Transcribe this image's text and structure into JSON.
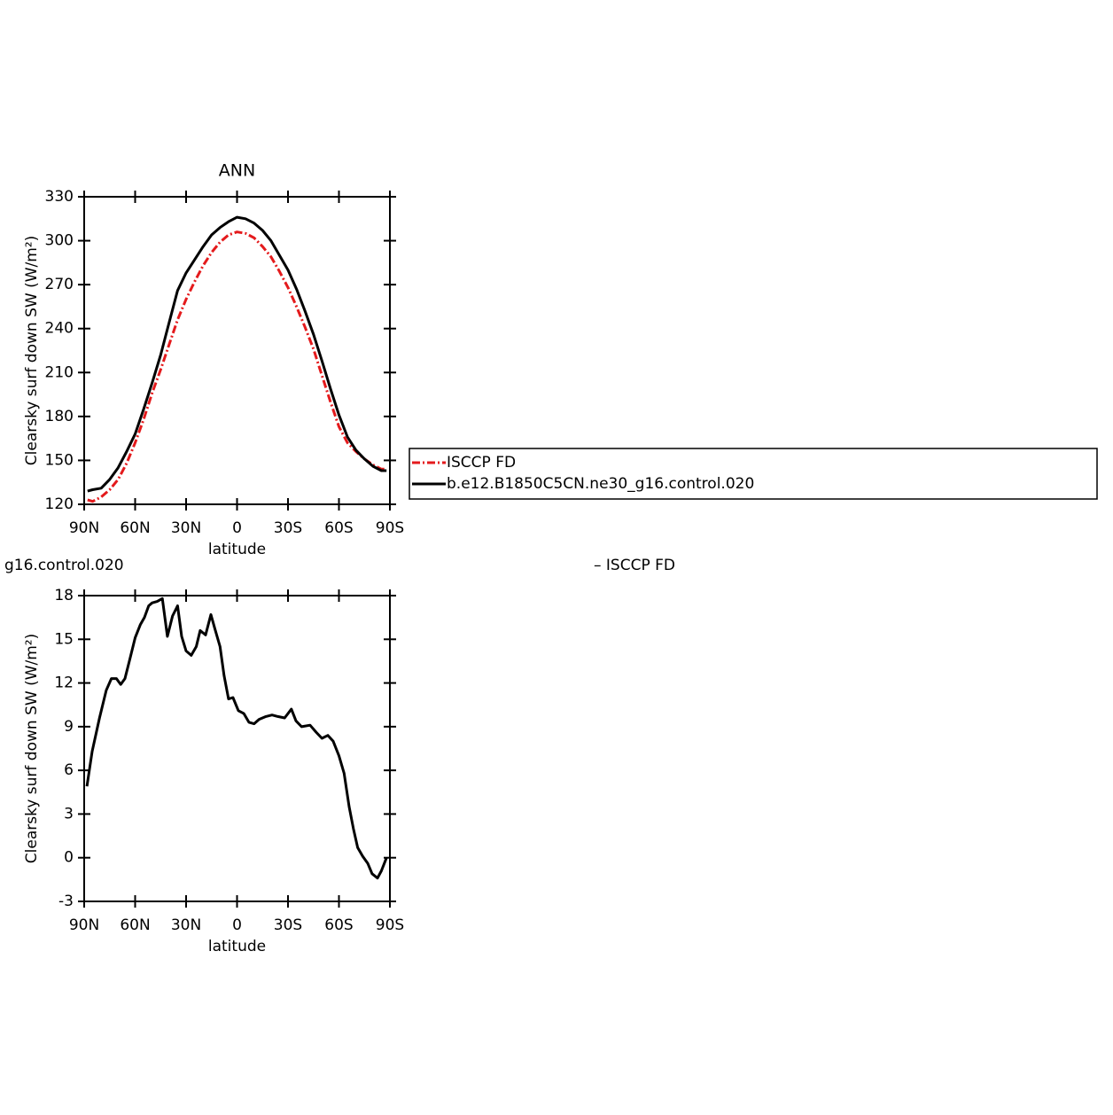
{
  "chart_data": [
    {
      "type": "line",
      "title": "ANN",
      "xlabel": "latitude",
      "ylabel": "Clearsky surf down SW (W/m²)",
      "xlim": [
        90,
        -90
      ],
      "xticks": [
        {
          "value": 90,
          "label": "90N"
        },
        {
          "value": 60,
          "label": "60N"
        },
        {
          "value": 30,
          "label": "30N"
        },
        0,
        {
          "value": -30,
          "label": "30S"
        },
        {
          "value": -60,
          "label": "60S"
        },
        {
          "value": -90,
          "label": "90S"
        }
      ],
      "ylim": [
        120,
        330
      ],
      "yticks": [
        120,
        150,
        180,
        210,
        240,
        270,
        300,
        330
      ],
      "legend": "right",
      "x": [
        88,
        85,
        80,
        75,
        70,
        65,
        60,
        55,
        50,
        45,
        40,
        35,
        30,
        25,
        20,
        15,
        10,
        5,
        0,
        -5,
        -10,
        -15,
        -20,
        -25,
        -30,
        -35,
        -40,
        -45,
        -50,
        -55,
        -60,
        -65,
        -70,
        -75,
        -80,
        -85,
        -88
      ],
      "series": [
        {
          "name": "ISCCP FD",
          "color": "#e41a1c",
          "dashed": true,
          "values": [
            123,
            122,
            125,
            130,
            137,
            148,
            162,
            178,
            196,
            212,
            229,
            246,
            260,
            272,
            283,
            292,
            299,
            304,
            306,
            305,
            302,
            296,
            289,
            279,
            268,
            255,
            241,
            226,
            208,
            190,
            173,
            162,
            156,
            151,
            147,
            144,
            144
          ]
        },
        {
          "name": "b.e12.B1850C5CN.ne30_g16.control.020",
          "color": "#000000",
          "dashed": false,
          "values": [
            129,
            130,
            131,
            137,
            145,
            156,
            168,
            185,
            203,
            222,
            244,
            266,
            278,
            287,
            296,
            304,
            309,
            313,
            316,
            315,
            312,
            307,
            300,
            290,
            280,
            267,
            252,
            236,
            218,
            199,
            181,
            166,
            157,
            151,
            146,
            143,
            143
          ]
        }
      ]
    },
    {
      "type": "line",
      "title": "g16.control.020",
      "subtitle": "– ISCCP FD",
      "xlabel": "latitude",
      "ylabel": "Clearsky surf down SW (W/m²)",
      "xlim": [
        90,
        -90
      ],
      "xticks": [
        {
          "value": 90,
          "label": "90N"
        },
        {
          "value": 60,
          "label": "60N"
        },
        {
          "value": 30,
          "label": "30N"
        },
        0,
        {
          "value": -30,
          "label": "30S"
        },
        {
          "value": -60,
          "label": "60S"
        },
        {
          "value": -90,
          "label": "90S"
        }
      ],
      "ylim": [
        -3,
        18
      ],
      "yticks": [
        -3,
        0,
        3,
        6,
        9,
        12,
        15,
        18
      ],
      "x": [
        88.4,
        85.3,
        81,
        77,
        74,
        71,
        68.5,
        66,
        63,
        60,
        57,
        54.5,
        52,
        50,
        47,
        44,
        41,
        38,
        35,
        32.6,
        30,
        27,
        24,
        21.7,
        18.5,
        15.4,
        13,
        10,
        7.6,
        5,
        2.4,
        -0.8,
        -4,
        -7,
        -10,
        -13,
        -17,
        -20.6,
        -24,
        -28,
        -32,
        -34.7,
        -38,
        -43,
        -46.7,
        -50,
        -53.5,
        -56.6,
        -60,
        -63,
        -66,
        -68.5,
        -71,
        -74,
        -77,
        -79.5,
        -82.7,
        -85,
        -88
      ],
      "series": [
        {
          "color": "#000000",
          "dashed": false,
          "values": [
            4.9,
            7.3,
            9.6,
            11.5,
            12.3,
            12.3,
            11.9,
            12.3,
            13.7,
            15.1,
            16.0,
            16.5,
            17.3,
            17.5,
            17.6,
            17.8,
            15.2,
            16.6,
            17.3,
            15.2,
            14.2,
            13.9,
            14.5,
            15.6,
            15.3,
            16.7,
            15.7,
            14.5,
            12.5,
            10.9,
            11.0,
            10.1,
            9.9,
            9.3,
            9.2,
            9.5,
            9.7,
            9.8,
            9.7,
            9.6,
            10.2,
            9.4,
            9.0,
            9.1,
            8.6,
            8.2,
            8.4,
            8.0,
            7.0,
            5.8,
            3.5,
            2.0,
            0.7,
            0.1,
            -0.4,
            -1.1,
            -1.4,
            -0.9,
            0.0
          ]
        }
      ]
    }
  ]
}
